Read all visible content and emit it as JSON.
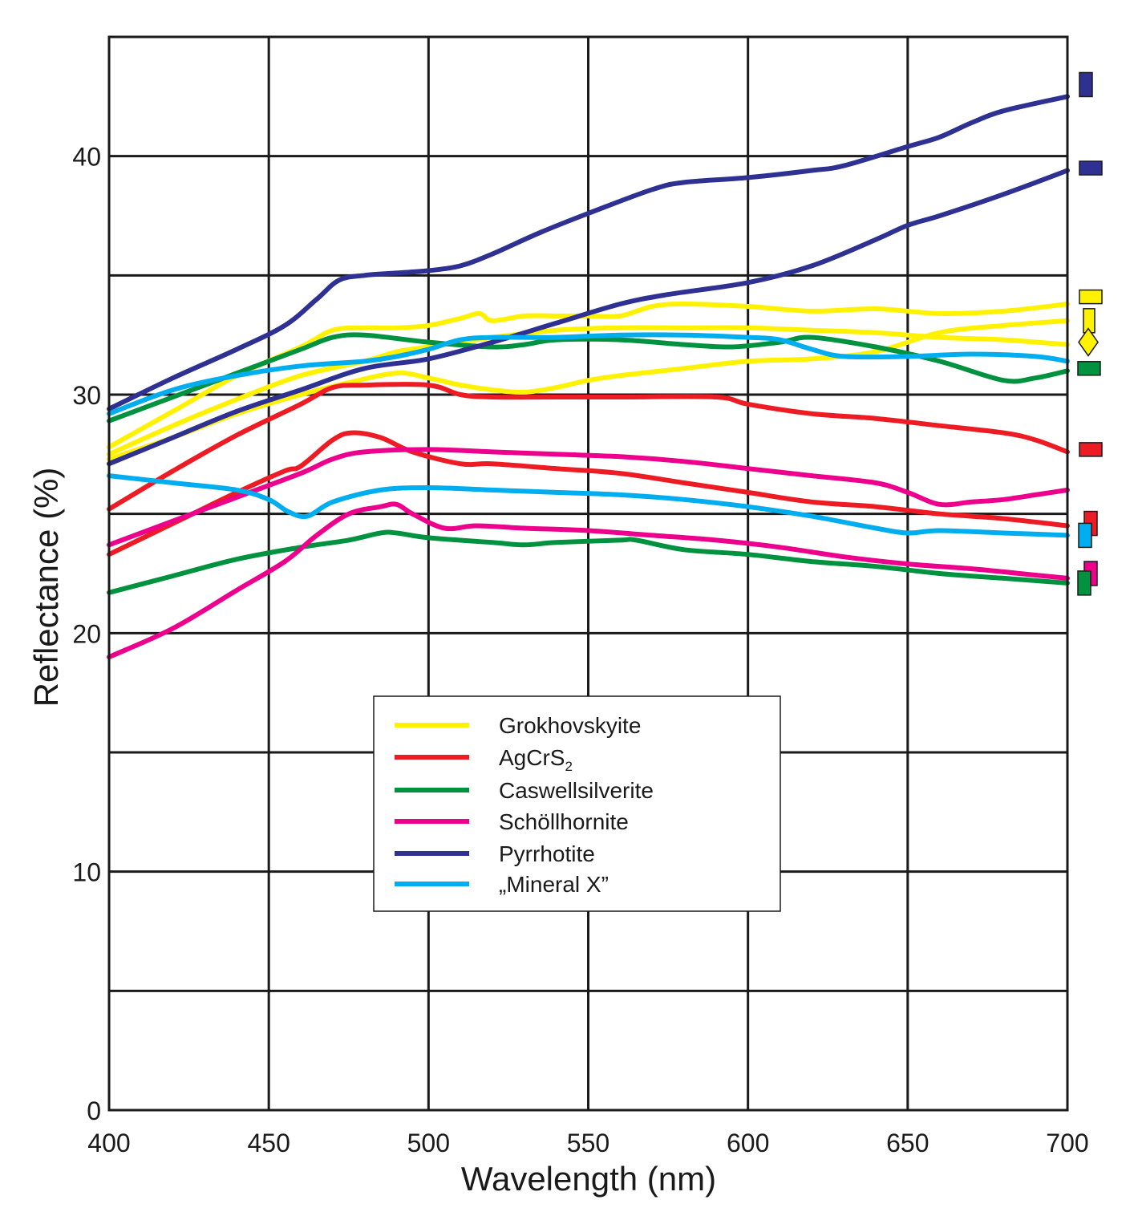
{
  "chart_data": {
    "type": "line",
    "title": "",
    "xlabel": "Wavelength (nm)",
    "ylabel": "Reflectance (%)",
    "xlim": [
      400,
      700
    ],
    "ylim": [
      0,
      45
    ],
    "x_ticks": [
      400,
      450,
      500,
      550,
      600,
      650,
      700
    ],
    "x_tick_labels": [
      "400",
      "450",
      "500",
      "550",
      "600",
      "650",
      "700"
    ],
    "y_ticks": [
      0,
      10,
      20,
      30,
      40
    ],
    "y_tick_labels": [
      "0",
      "10",
      "20",
      "30",
      "40"
    ],
    "y_gridlines": [
      0,
      5,
      10,
      15,
      20,
      25,
      30,
      35,
      40,
      45
    ],
    "grid": true,
    "legend_position": "center",
    "legend": [
      {
        "key": "grok",
        "label": "Grokhovskyite",
        "sub": "",
        "color": "#fff200"
      },
      {
        "key": "agcrs",
        "label": "AgCrS",
        "sub": "2",
        "color": "#ed1c24"
      },
      {
        "key": "casw",
        "label": "Caswellsilverite",
        "sub": "",
        "color": "#00923f"
      },
      {
        "key": "scho",
        "label": "Schöllhornite",
        "sub": "",
        "color": "#ec008c"
      },
      {
        "key": "pyrr",
        "label": "Pyrrhotite",
        "sub": "",
        "color": "#2e3192"
      },
      {
        "key": "minx",
        "label": "„Mineral X”",
        "sub": "",
        "color": "#00aeef"
      }
    ],
    "series": [
      {
        "name": "Grokhovskyite (R1)",
        "key": "grok",
        "color": "#fff200",
        "points": [
          [
            400,
            27.8
          ],
          [
            420,
            29.3
          ],
          [
            440,
            30.8
          ],
          [
            460,
            32.0
          ],
          [
            470,
            32.7
          ],
          [
            480,
            32.8
          ],
          [
            490,
            32.8
          ],
          [
            500,
            32.9
          ],
          [
            510,
            33.2
          ],
          [
            516,
            33.4
          ],
          [
            520,
            33.1
          ],
          [
            530,
            33.3
          ],
          [
            540,
            33.3
          ],
          [
            550,
            33.3
          ],
          [
            560,
            33.3
          ],
          [
            570,
            33.7
          ],
          [
            580,
            33.8
          ],
          [
            600,
            33.7
          ],
          [
            620,
            33.5
          ],
          [
            640,
            33.6
          ],
          [
            660,
            33.4
          ],
          [
            680,
            33.5
          ],
          [
            700,
            33.8
          ]
        ]
      },
      {
        "name": "Grokhovskyite (R2)",
        "key": "grok",
        "color": "#fff200",
        "points": [
          [
            400,
            27.5
          ],
          [
            420,
            28.7
          ],
          [
            440,
            29.8
          ],
          [
            460,
            30.8
          ],
          [
            480,
            31.4
          ],
          [
            490,
            31.8
          ],
          [
            500,
            32.0
          ],
          [
            510,
            32.2
          ],
          [
            520,
            32.4
          ],
          [
            540,
            32.7
          ],
          [
            560,
            32.8
          ],
          [
            580,
            32.8
          ],
          [
            600,
            32.8
          ],
          [
            620,
            32.7
          ],
          [
            640,
            32.6
          ],
          [
            660,
            32.4
          ],
          [
            680,
            32.3
          ],
          [
            700,
            32.1
          ]
        ]
      },
      {
        "name": "Grokhovskyite (R3)",
        "key": "grok",
        "color": "#fff200",
        "points": [
          [
            400,
            27.3
          ],
          [
            420,
            28.2
          ],
          [
            440,
            29.2
          ],
          [
            460,
            30.0
          ],
          [
            475,
            30.5
          ],
          [
            490,
            30.9
          ],
          [
            500,
            30.7
          ],
          [
            510,
            30.4
          ],
          [
            520,
            30.2
          ],
          [
            530,
            30.1
          ],
          [
            540,
            30.3
          ],
          [
            550,
            30.6
          ],
          [
            560,
            30.8
          ],
          [
            580,
            31.1
          ],
          [
            600,
            31.4
          ],
          [
            620,
            31.5
          ],
          [
            640,
            31.8
          ],
          [
            660,
            32.6
          ],
          [
            680,
            32.9
          ],
          [
            700,
            33.1
          ]
        ]
      },
      {
        "name": "AgCrS2 (R1)",
        "key": "agcrs",
        "color": "#ed1c24",
        "points": [
          [
            400,
            25.2
          ],
          [
            420,
            26.8
          ],
          [
            440,
            28.3
          ],
          [
            460,
            29.6
          ],
          [
            470,
            30.3
          ],
          [
            480,
            30.4
          ],
          [
            500,
            30.4
          ],
          [
            510,
            30.0
          ],
          [
            520,
            29.9
          ],
          [
            540,
            29.9
          ],
          [
            560,
            29.9
          ],
          [
            590,
            29.9
          ],
          [
            600,
            29.6
          ],
          [
            620,
            29.2
          ],
          [
            640,
            29.0
          ],
          [
            660,
            28.7
          ],
          [
            680,
            28.4
          ],
          [
            690,
            28.1
          ],
          [
            700,
            27.6
          ]
        ]
      },
      {
        "name": "AgCrS2 (R2)",
        "key": "agcrs",
        "color": "#ed1c24",
        "points": [
          [
            400,
            23.3
          ],
          [
            420,
            24.6
          ],
          [
            440,
            25.9
          ],
          [
            455,
            26.8
          ],
          [
            460,
            27.0
          ],
          [
            470,
            28.1
          ],
          [
            476,
            28.4
          ],
          [
            485,
            28.2
          ],
          [
            495,
            27.6
          ],
          [
            510,
            27.1
          ],
          [
            520,
            27.1
          ],
          [
            540,
            26.9
          ],
          [
            560,
            26.7
          ],
          [
            580,
            26.3
          ],
          [
            600,
            25.9
          ],
          [
            620,
            25.5
          ],
          [
            640,
            25.3
          ],
          [
            660,
            25.0
          ],
          [
            680,
            24.8
          ],
          [
            700,
            24.5
          ]
        ]
      },
      {
        "name": "Caswellsilverite (R1)",
        "key": "casw",
        "color": "#00923f",
        "points": [
          [
            400,
            28.9
          ],
          [
            420,
            29.9
          ],
          [
            440,
            30.9
          ],
          [
            460,
            31.9
          ],
          [
            470,
            32.4
          ],
          [
            480,
            32.5
          ],
          [
            500,
            32.2
          ],
          [
            520,
            32.0
          ],
          [
            530,
            32.1
          ],
          [
            540,
            32.3
          ],
          [
            560,
            32.3
          ],
          [
            580,
            32.1
          ],
          [
            595,
            32.0
          ],
          [
            610,
            32.2
          ],
          [
            620,
            32.4
          ],
          [
            640,
            32.0
          ],
          [
            660,
            31.4
          ],
          [
            680,
            30.6
          ],
          [
            690,
            30.7
          ],
          [
            700,
            31.0
          ]
        ]
      },
      {
        "name": "Caswellsilverite (R2)",
        "key": "casw",
        "color": "#00923f",
        "points": [
          [
            400,
            21.7
          ],
          [
            420,
            22.4
          ],
          [
            440,
            23.1
          ],
          [
            460,
            23.6
          ],
          [
            475,
            23.9
          ],
          [
            485,
            24.2
          ],
          [
            490,
            24.2
          ],
          [
            500,
            24.0
          ],
          [
            520,
            23.8
          ],
          [
            530,
            23.7
          ],
          [
            540,
            23.8
          ],
          [
            560,
            23.9
          ],
          [
            565,
            23.9
          ],
          [
            580,
            23.5
          ],
          [
            600,
            23.3
          ],
          [
            620,
            23.0
          ],
          [
            640,
            22.8
          ],
          [
            660,
            22.5
          ],
          [
            680,
            22.3
          ],
          [
            700,
            22.1
          ]
        ]
      },
      {
        "name": "Schöllhornite (R1)",
        "key": "scho",
        "color": "#ec008c",
        "points": [
          [
            400,
            23.7
          ],
          [
            420,
            24.7
          ],
          [
            440,
            25.7
          ],
          [
            460,
            26.7
          ],
          [
            470,
            27.3
          ],
          [
            480,
            27.6
          ],
          [
            500,
            27.7
          ],
          [
            520,
            27.6
          ],
          [
            540,
            27.5
          ],
          [
            560,
            27.4
          ],
          [
            580,
            27.2
          ],
          [
            600,
            26.9
          ],
          [
            620,
            26.6
          ],
          [
            640,
            26.3
          ],
          [
            650,
            25.9
          ],
          [
            660,
            25.4
          ],
          [
            670,
            25.5
          ],
          [
            680,
            25.6
          ],
          [
            690,
            25.8
          ],
          [
            700,
            26.0
          ]
        ]
      },
      {
        "name": "Schöllhornite (R2)",
        "key": "scho",
        "color": "#ec008c",
        "points": [
          [
            400,
            19.0
          ],
          [
            420,
            20.2
          ],
          [
            440,
            21.8
          ],
          [
            455,
            23.0
          ],
          [
            465,
            24.1
          ],
          [
            475,
            25.0
          ],
          [
            485,
            25.3
          ],
          [
            490,
            25.4
          ],
          [
            495,
            25.0
          ],
          [
            505,
            24.4
          ],
          [
            515,
            24.5
          ],
          [
            530,
            24.4
          ],
          [
            550,
            24.3
          ],
          [
            570,
            24.1
          ],
          [
            590,
            23.9
          ],
          [
            610,
            23.6
          ],
          [
            630,
            23.2
          ],
          [
            650,
            22.9
          ],
          [
            670,
            22.7
          ],
          [
            685,
            22.5
          ],
          [
            700,
            22.3
          ]
        ]
      },
      {
        "name": "Pyrrhotite (R1)",
        "key": "pyrr",
        "color": "#2e3192",
        "points": [
          [
            400,
            29.4
          ],
          [
            420,
            30.7
          ],
          [
            440,
            31.9
          ],
          [
            455,
            32.9
          ],
          [
            465,
            34.0
          ],
          [
            472,
            34.8
          ],
          [
            480,
            35.0
          ],
          [
            490,
            35.1
          ],
          [
            500,
            35.2
          ],
          [
            510,
            35.4
          ],
          [
            520,
            35.9
          ],
          [
            535,
            36.8
          ],
          [
            550,
            37.6
          ],
          [
            570,
            38.6
          ],
          [
            580,
            38.9
          ],
          [
            600,
            39.1
          ],
          [
            620,
            39.4
          ],
          [
            630,
            39.6
          ],
          [
            650,
            40.4
          ],
          [
            660,
            40.8
          ],
          [
            670,
            41.4
          ],
          [
            680,
            41.9
          ],
          [
            700,
            42.5
          ]
        ]
      },
      {
        "name": "Pyrrhotite (R2)",
        "key": "pyrr",
        "color": "#2e3192",
        "points": [
          [
            400,
            27.1
          ],
          [
            420,
            28.2
          ],
          [
            440,
            29.3
          ],
          [
            460,
            30.2
          ],
          [
            480,
            31.1
          ],
          [
            500,
            31.5
          ],
          [
            520,
            32.2
          ],
          [
            540,
            33.0
          ],
          [
            560,
            33.8
          ],
          [
            575,
            34.2
          ],
          [
            600,
            34.7
          ],
          [
            620,
            35.4
          ],
          [
            640,
            36.5
          ],
          [
            650,
            37.1
          ],
          [
            660,
            37.5
          ],
          [
            680,
            38.4
          ],
          [
            700,
            39.4
          ]
        ]
      },
      {
        "name": "Mineral X (R1)",
        "key": "minx",
        "color": "#00aeef",
        "points": [
          [
            400,
            29.2
          ],
          [
            420,
            30.2
          ],
          [
            440,
            30.8
          ],
          [
            460,
            31.2
          ],
          [
            480,
            31.4
          ],
          [
            490,
            31.6
          ],
          [
            500,
            31.9
          ],
          [
            510,
            32.3
          ],
          [
            520,
            32.4
          ],
          [
            540,
            32.4
          ],
          [
            560,
            32.5
          ],
          [
            580,
            32.5
          ],
          [
            600,
            32.4
          ],
          [
            610,
            32.3
          ],
          [
            620,
            31.9
          ],
          [
            630,
            31.6
          ],
          [
            650,
            31.6
          ],
          [
            670,
            31.7
          ],
          [
            690,
            31.6
          ],
          [
            700,
            31.4
          ]
        ]
      },
      {
        "name": "Mineral X (R2)",
        "key": "minx",
        "color": "#00aeef",
        "points": [
          [
            400,
            26.6
          ],
          [
            420,
            26.3
          ],
          [
            440,
            26.0
          ],
          [
            450,
            25.6
          ],
          [
            456,
            25.1
          ],
          [
            462,
            24.9
          ],
          [
            470,
            25.5
          ],
          [
            485,
            26.0
          ],
          [
            500,
            26.1
          ],
          [
            520,
            26.0
          ],
          [
            540,
            25.9
          ],
          [
            560,
            25.8
          ],
          [
            580,
            25.6
          ],
          [
            600,
            25.3
          ],
          [
            620,
            24.9
          ],
          [
            640,
            24.4
          ],
          [
            650,
            24.2
          ],
          [
            660,
            24.3
          ],
          [
            680,
            24.2
          ],
          [
            700,
            24.1
          ]
        ]
      }
    ],
    "side_markers": [
      {
        "key": "pyrr",
        "color": "#2e3192",
        "shape": "rect",
        "y": 43.0
      },
      {
        "key": "pyrr",
        "color": "#2e3192",
        "shape": "rect",
        "y": 39.5
      },
      {
        "key": "grok",
        "color": "#fff200",
        "shape": "rect",
        "y": 34.1
      },
      {
        "key": "grok",
        "color": "#fff200",
        "shape": "rect",
        "y": 33.1
      },
      {
        "key": "grok",
        "color": "#fff200",
        "shape": "diamond",
        "y": 32.2
      },
      {
        "key": "casw",
        "color": "#00923f",
        "shape": "rect",
        "y": 31.1
      },
      {
        "key": "agcrs",
        "color": "#ed1c24",
        "shape": "rect",
        "y": 27.7
      },
      {
        "key": "agcrs",
        "color": "#ed1c24",
        "shape": "rect",
        "y": 24.6
      },
      {
        "key": "minx",
        "color": "#00aeef",
        "shape": "rect",
        "y": 24.1
      },
      {
        "key": "scho",
        "color": "#ec008c",
        "shape": "rect",
        "y": 22.5
      },
      {
        "key": "casw",
        "color": "#00923f",
        "shape": "rect",
        "y": 22.1
      }
    ]
  }
}
